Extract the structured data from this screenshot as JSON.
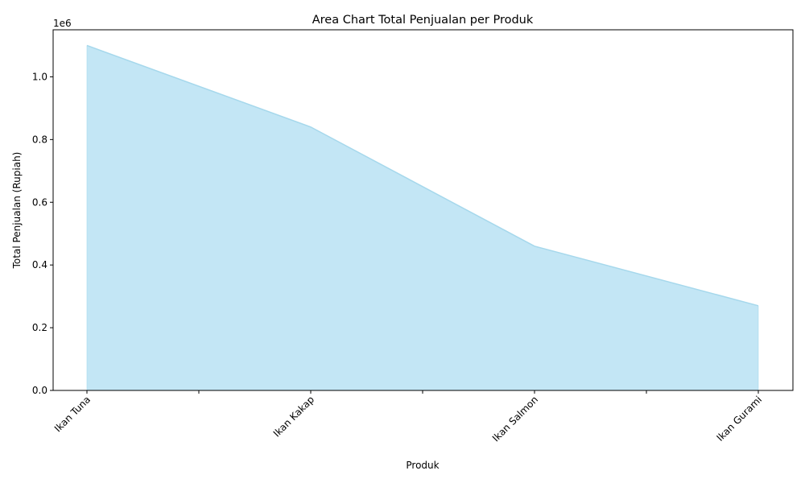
{
  "chart_data": {
    "type": "area",
    "title": "Area Chart Total Penjualan per Produk",
    "xlabel": "Produk",
    "ylabel": "Total Penjualan (Rupiah)",
    "y_offset_label": "1e6",
    "categories": [
      "Ikan Tuna",
      "Ikan Kakap",
      "Ikan Salmon",
      "Ikan Gurami"
    ],
    "values": [
      1100000,
      840000,
      460000,
      270000
    ],
    "ylim": [
      0,
      1150000
    ],
    "y_ticks": [
      0,
      200000,
      400000,
      600000,
      800000,
      1000000
    ],
    "y_tick_labels": [
      "0.0",
      "0.2",
      "0.4",
      "0.6",
      "0.8",
      "1.0"
    ],
    "x_minor_ticks": 3,
    "grid": false,
    "fill_color": "#87ceeb",
    "fill_opacity": 0.5,
    "line_color": "#a6d8ec"
  }
}
